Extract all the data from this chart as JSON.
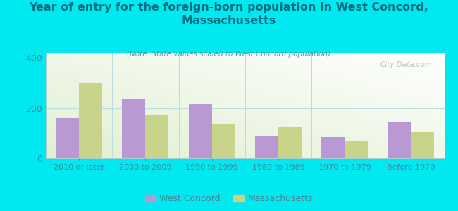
{
  "title": "Year of entry for the foreign-born population in West Concord,\nMassachusetts",
  "subtitle": "(Note: State values scaled to West Concord population)",
  "categories": [
    "2010 or later",
    "2000 to 2009",
    "1990 to 1999",
    "1980 to 1989",
    "1970 to 1979",
    "Before 1970"
  ],
  "west_concord": [
    160,
    235,
    215,
    90,
    85,
    145
  ],
  "massachusetts": [
    300,
    170,
    135,
    125,
    70,
    105
  ],
  "bar_color_wc": "#b899d4",
  "bar_color_ma": "#c8d48a",
  "background_outer": "#00e8f0",
  "title_color": "#007080",
  "subtitle_color": "#4499aa",
  "tick_color": "#448899",
  "ylim": [
    0,
    420
  ],
  "yticks": [
    0,
    200,
    400
  ],
  "bar_width": 0.35,
  "watermark": "City-Data.com"
}
